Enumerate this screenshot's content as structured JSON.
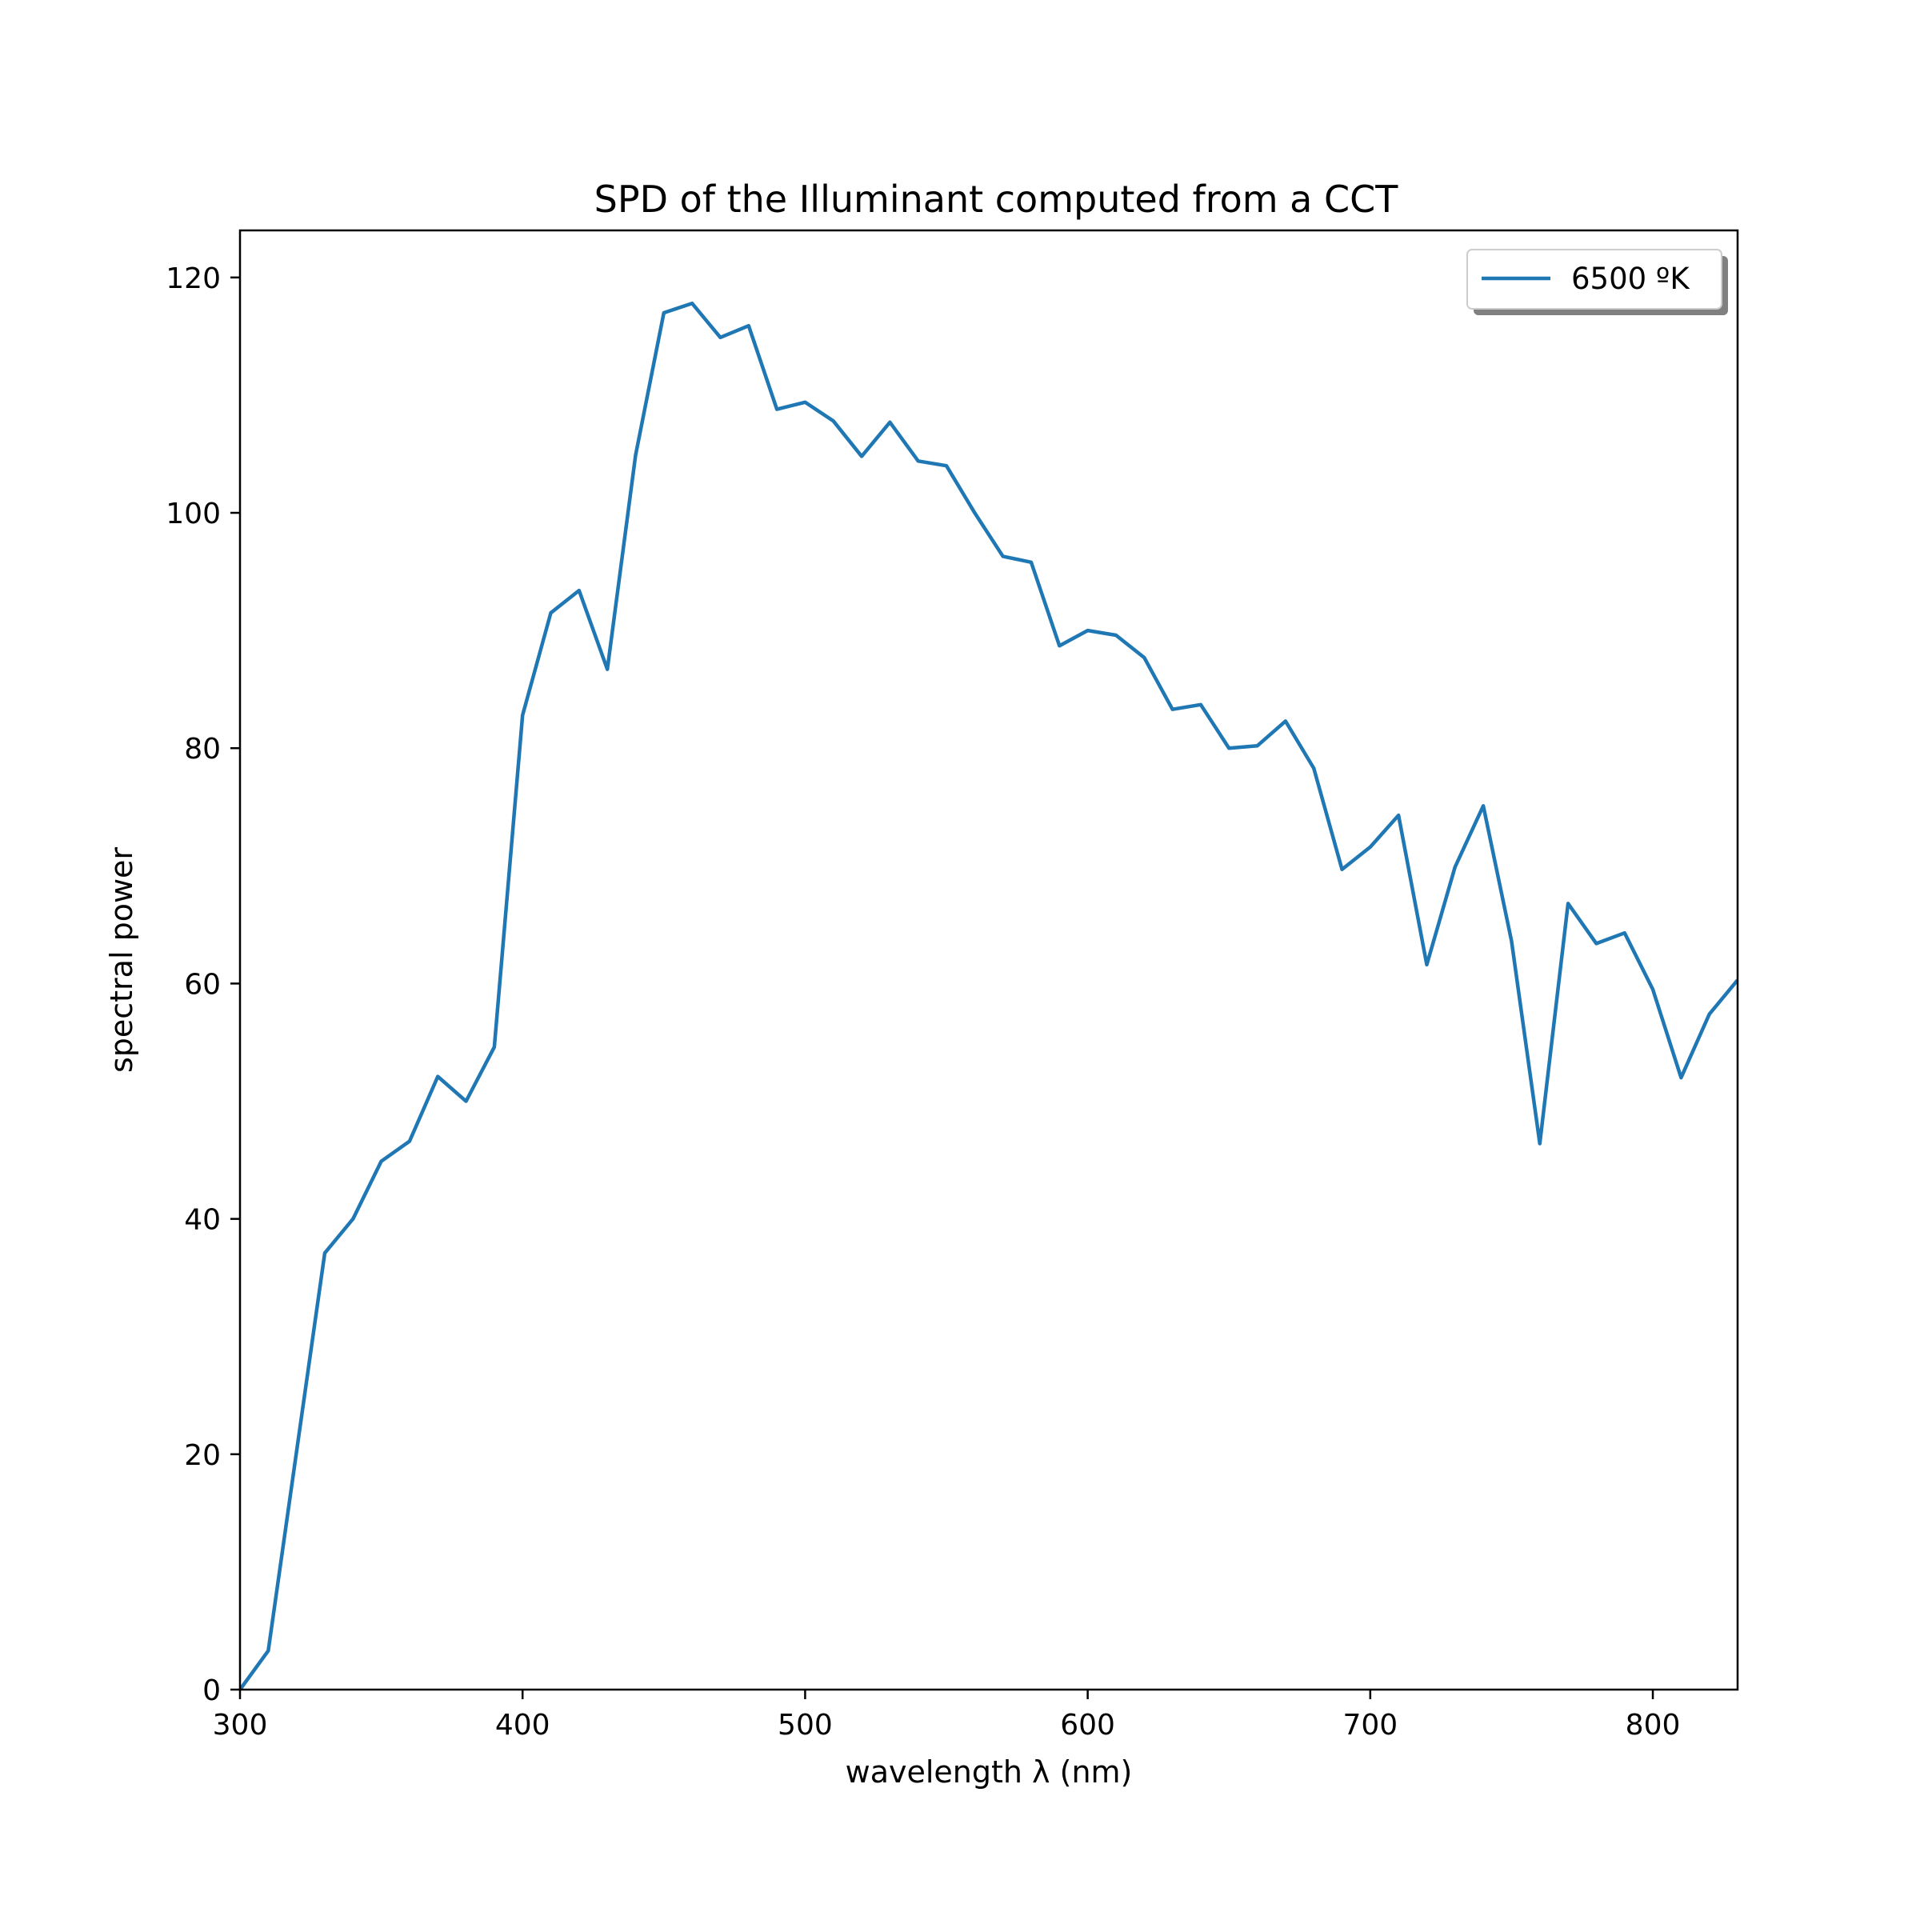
{
  "chart_data": {
    "type": "line",
    "title": "SPD of the Illuminant computed from a CCT",
    "xlabel": "wavelength λ (nm)",
    "ylabel": "spectral power",
    "xlim": [
      300,
      830
    ],
    "ylim": [
      0,
      124
    ],
    "xticks": [
      300,
      400,
      500,
      600,
      700,
      800
    ],
    "yticks": [
      0,
      20,
      40,
      60,
      80,
      100,
      120
    ],
    "grid": false,
    "legend": "top-right",
    "line_color": "#1f77b4",
    "series": [
      {
        "name": "6500 ºK",
        "x": [
          300,
          310,
          320,
          330,
          340,
          350,
          360,
          370,
          380,
          390,
          400,
          410,
          420,
          430,
          440,
          450,
          460,
          470,
          480,
          490,
          500,
          510,
          520,
          530,
          540,
          550,
          560,
          570,
          580,
          590,
          600,
          610,
          620,
          630,
          640,
          650,
          660,
          670,
          680,
          690,
          700,
          710,
          720,
          730,
          740,
          750,
          760,
          770,
          780,
          790,
          800,
          810,
          820,
          830
        ],
        "y": [
          0.0,
          3.3,
          20.2,
          37.1,
          40.0,
          44.9,
          46.6,
          52.1,
          50.0,
          54.6,
          82.8,
          91.5,
          93.4,
          86.7,
          104.9,
          117.0,
          117.8,
          114.9,
          115.9,
          108.8,
          109.4,
          107.8,
          104.8,
          107.7,
          104.4,
          104.0,
          100.0,
          96.3,
          95.8,
          88.7,
          90.0,
          89.6,
          87.7,
          83.3,
          83.7,
          80.0,
          80.2,
          82.3,
          78.3,
          69.7,
          71.6,
          74.3,
          61.6,
          69.9,
          75.1,
          63.6,
          46.4,
          66.8,
          63.4,
          64.3,
          59.5,
          52.0,
          57.4,
          60.3
        ]
      }
    ]
  }
}
